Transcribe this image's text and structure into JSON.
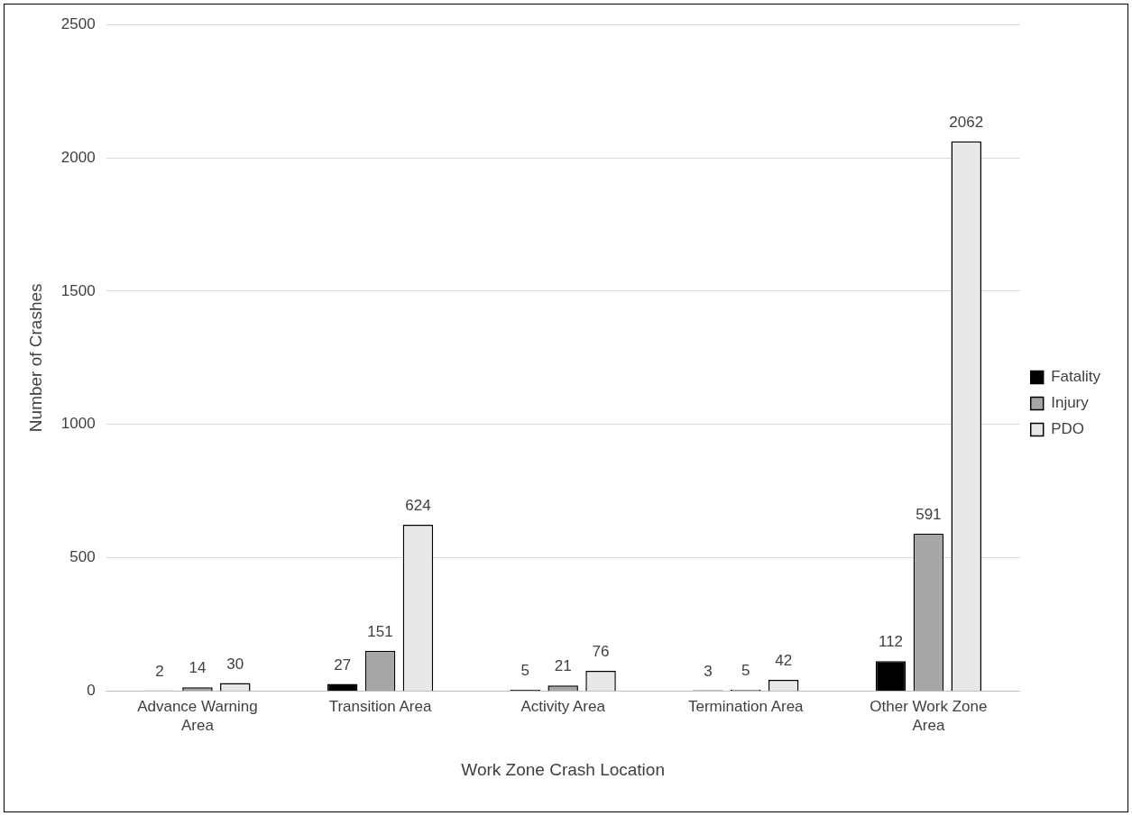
{
  "chart_data": {
    "type": "bar",
    "xlabel": "Work Zone Crash Location",
    "ylabel": "Number of Crashes",
    "categories": [
      "Advance Warning Area",
      "Transition Area",
      "Activity Area",
      "Termination Area",
      "Other Work Zone Area"
    ],
    "series": [
      {
        "name": "Fatality",
        "color": "#000000",
        "values": [
          2,
          27,
          5,
          3,
          112
        ]
      },
      {
        "name": "Injury",
        "color": "#a6a6a6",
        "values": [
          14,
          151,
          21,
          5,
          591
        ]
      },
      {
        "name": "PDO",
        "color": "#e8e8e8",
        "values": [
          30,
          624,
          76,
          42,
          2062
        ]
      }
    ],
    "ylim": [
      0,
      2500
    ],
    "yticks": [
      0,
      500,
      1000,
      1500,
      2000,
      2500
    ],
    "grid": "y",
    "legend": "right",
    "data_labels": true
  }
}
